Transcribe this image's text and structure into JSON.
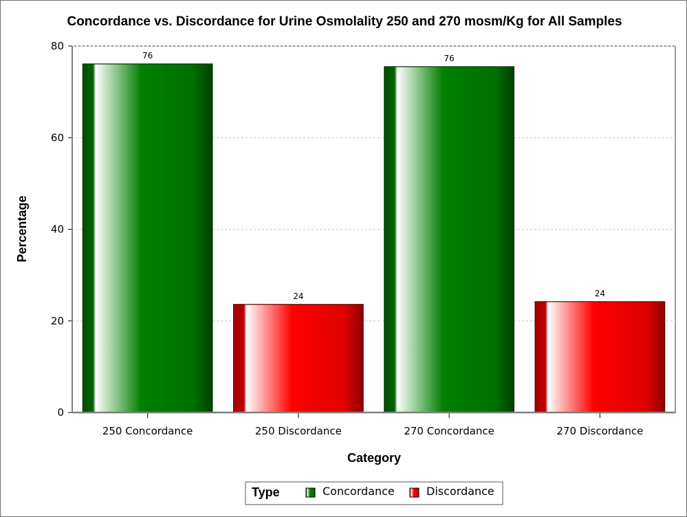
{
  "chart_data": {
    "type": "bar",
    "title": "Concordance vs. Discordance for Urine Osmolality 250 and 270 mosm/Kg for All Samples",
    "xlabel": "Category",
    "ylabel": "Percentage",
    "ylim": [
      0,
      80
    ],
    "yticks": [
      0,
      20,
      40,
      60,
      80
    ],
    "grid": true,
    "categories": [
      "250 Concordance",
      "250 Discordance",
      "270 Concordance",
      "270 Discordance"
    ],
    "values": [
      76.1,
      23.6,
      75.5,
      24.2
    ],
    "data_labels": [
      "76",
      "24",
      "76",
      "24"
    ],
    "types": [
      "Concordance",
      "Discordance",
      "Concordance",
      "Discordance"
    ],
    "legend": {
      "title": "Type",
      "placement": "bottom-center",
      "entries": [
        {
          "name": "Concordance",
          "color": "#008000"
        },
        {
          "name": "Discordance",
          "color": "#ff0000"
        }
      ]
    },
    "colors": {
      "Concordance": "#008000",
      "Discordance": "#ff0000"
    }
  }
}
